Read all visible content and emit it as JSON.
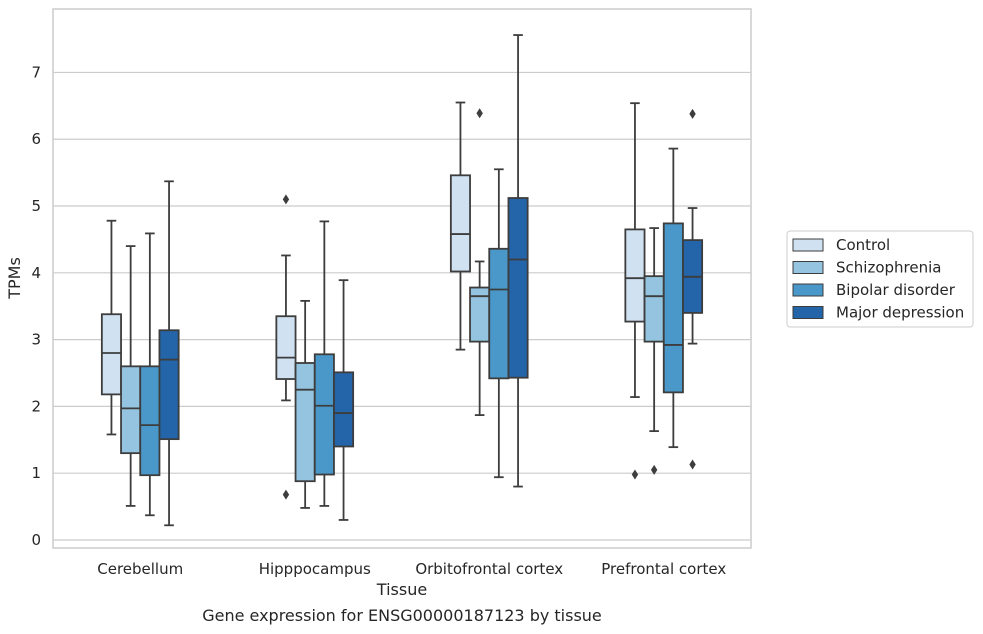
{
  "chart_data": {
    "type": "boxplot",
    "title": "",
    "caption": "Gene expression for ENSG00000187123 by tissue",
    "xlabel": "Tissue",
    "ylabel": "TPMs",
    "ylim": [
      -0.12,
      7.95
    ],
    "yticks": [
      0,
      1,
      2,
      3,
      4,
      5,
      6,
      7
    ],
    "grid": "horizontal",
    "legend_position": "right",
    "categories": [
      "Cerebellum",
      "Hipppocampus",
      "Orbitofrontal cortex",
      "Prefrontal cortex"
    ],
    "series": [
      {
        "name": "Control",
        "color": "#d0e1f2",
        "boxes": [
          {
            "whislo": 1.58,
            "q1": 2.18,
            "med": 2.8,
            "q3": 3.38,
            "whishi": 4.78,
            "fliers": []
          },
          {
            "whislo": 2.09,
            "q1": 2.41,
            "med": 2.73,
            "q3": 3.35,
            "whishi": 4.26,
            "fliers": [
              0.68,
              5.1
            ]
          },
          {
            "whislo": 2.85,
            "q1": 4.02,
            "med": 4.58,
            "q3": 5.46,
            "whishi": 6.55,
            "fliers": []
          },
          {
            "whislo": 2.14,
            "q1": 3.27,
            "med": 3.92,
            "q3": 4.65,
            "whishi": 6.54,
            "fliers": [
              0.98
            ]
          }
        ]
      },
      {
        "name": "Schizophrenia",
        "color": "#94c4df",
        "boxes": [
          {
            "whislo": 0.51,
            "q1": 1.3,
            "med": 1.97,
            "q3": 2.6,
            "whishi": 4.4,
            "fliers": []
          },
          {
            "whislo": 0.48,
            "q1": 0.88,
            "med": 2.25,
            "q3": 2.65,
            "whishi": 3.58,
            "fliers": []
          },
          {
            "whislo": 1.87,
            "q1": 2.97,
            "med": 3.65,
            "q3": 3.78,
            "whishi": 4.17,
            "fliers": [
              6.39
            ]
          },
          {
            "whislo": 1.63,
            "q1": 2.97,
            "med": 3.65,
            "q3": 3.95,
            "whishi": 4.67,
            "fliers": [
              1.05
            ]
          }
        ]
      },
      {
        "name": "Bipolar disorder",
        "color": "#4a98c9",
        "boxes": [
          {
            "whislo": 0.37,
            "q1": 0.97,
            "med": 1.72,
            "q3": 2.6,
            "whishi": 4.59,
            "fliers": []
          },
          {
            "whislo": 0.51,
            "q1": 0.98,
            "med": 2.01,
            "q3": 2.78,
            "whishi": 4.77,
            "fliers": []
          },
          {
            "whislo": 0.94,
            "q1": 2.42,
            "med": 3.75,
            "q3": 4.36,
            "whishi": 5.55,
            "fliers": []
          },
          {
            "whislo": 1.39,
            "q1": 2.21,
            "med": 2.92,
            "q3": 4.74,
            "whishi": 5.86,
            "fliers": []
          }
        ]
      },
      {
        "name": "Major depression",
        "color": "#2464a8",
        "boxes": [
          {
            "whislo": 0.22,
            "q1": 1.51,
            "med": 2.7,
            "q3": 3.14,
            "whishi": 5.37,
            "fliers": []
          },
          {
            "whislo": 0.3,
            "q1": 1.4,
            "med": 1.9,
            "q3": 2.51,
            "whishi": 3.89,
            "fliers": []
          },
          {
            "whislo": 0.8,
            "q1": 2.43,
            "med": 4.2,
            "q3": 5.12,
            "whishi": 7.56,
            "fliers": []
          },
          {
            "whislo": 2.94,
            "q1": 3.4,
            "med": 3.94,
            "q3": 4.49,
            "whishi": 4.97,
            "fliers": [
              1.13,
              6.38
            ]
          }
        ]
      }
    ]
  }
}
